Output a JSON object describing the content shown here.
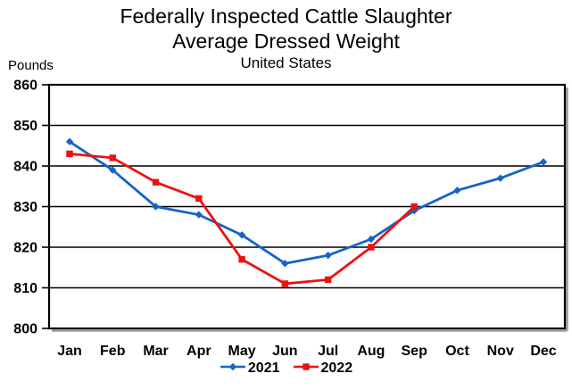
{
  "title": {
    "line1": "Federally Inspected Cattle Slaughter",
    "line2": "Average Dressed Weight",
    "line3": "United States"
  },
  "y_axis_label": "Pounds",
  "legend": [
    {
      "label": "2021",
      "color": "#1565c8",
      "marker": "diamond"
    },
    {
      "label": "2022",
      "color": "#ee1111",
      "marker": "square"
    }
  ],
  "chart_data": {
    "type": "line",
    "title": "Federally Inspected Cattle Slaughter Average Dressed Weight",
    "subtitle": "United States",
    "ylabel": "Pounds",
    "xlabel": "",
    "ylim": [
      800,
      860
    ],
    "ytick_step": 10,
    "grid": true,
    "legend_position": "bottom",
    "categories": [
      "Jan",
      "Feb",
      "Mar",
      "Apr",
      "May",
      "Jun",
      "Jul",
      "Aug",
      "Sep",
      "Oct",
      "Nov",
      "Dec"
    ],
    "series": [
      {
        "name": "2021",
        "color": "#1565c8",
        "marker": "diamond",
        "values": [
          846,
          839,
          830,
          828,
          823,
          816,
          818,
          822,
          829,
          834,
          837,
          841
        ]
      },
      {
        "name": "2022",
        "color": "#ee1111",
        "marker": "square",
        "values": [
          843,
          842,
          836,
          832,
          817,
          811,
          812,
          820,
          830,
          null,
          null,
          null
        ]
      }
    ]
  }
}
